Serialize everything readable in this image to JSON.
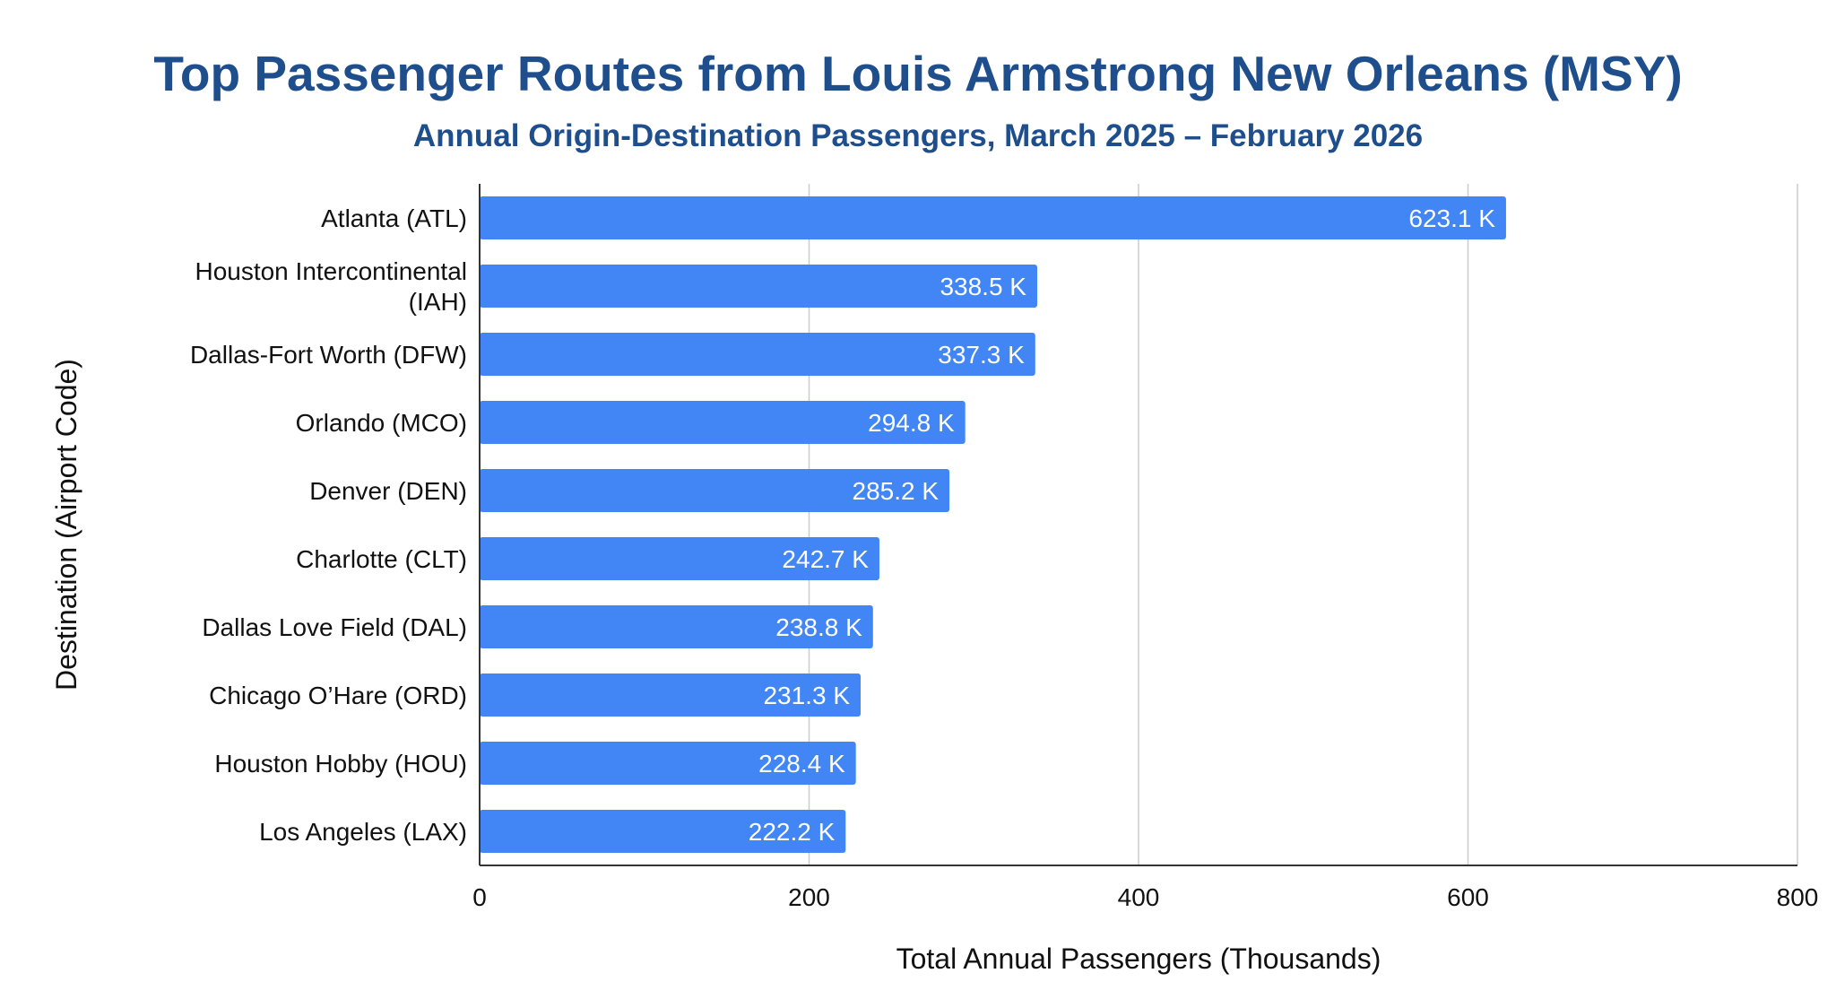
{
  "chart_data": {
    "type": "bar",
    "orientation": "horizontal",
    "title": "Top Passenger Routes from Louis Armstrong New Orleans (MSY)",
    "subtitle": "Annual Origin-Destination Passengers, March 2025 – February 2026",
    "xlabel": "Total Annual Passengers (Thousands)",
    "ylabel": "Destination (Airport Code)",
    "xlim": [
      0,
      800
    ],
    "xticks": [
      "0",
      "200",
      "400",
      "600",
      "800"
    ],
    "grid": true,
    "bar_color": "#4285f4",
    "title_color": "#1f4e8c",
    "categories": [
      [
        "Atlanta (ATL)"
      ],
      [
        "Houston Intercontinental",
        "(IAH)"
      ],
      [
        "Dallas-Fort Worth (DFW)"
      ],
      [
        "Orlando (MCO)"
      ],
      [
        "Denver (DEN)"
      ],
      [
        "Charlotte (CLT)"
      ],
      [
        "Dallas Love Field (DAL)"
      ],
      [
        "Chicago O’Hare (ORD)"
      ],
      [
        "Houston Hobby (HOU)"
      ],
      [
        "Los Angeles (LAX)"
      ]
    ],
    "values": [
      623.1,
      338.5,
      337.3,
      294.8,
      285.2,
      242.7,
      238.8,
      231.3,
      228.4,
      222.2
    ],
    "data_labels": [
      "623.1 K",
      "338.5 K",
      "337.3 K",
      "294.8 K",
      "285.2 K",
      "242.7 K",
      "238.8 K",
      "231.3 K",
      "228.4 K",
      "222.2 K"
    ]
  }
}
